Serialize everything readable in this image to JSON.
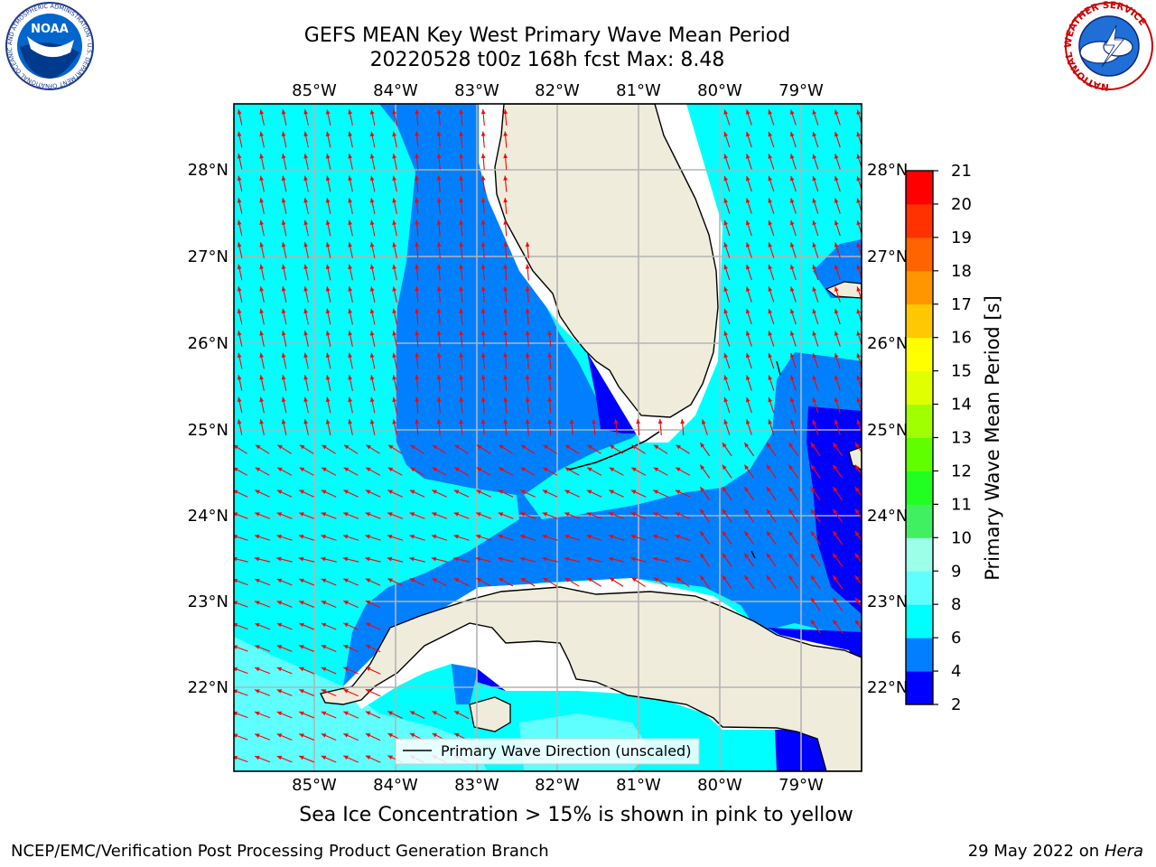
{
  "header": {
    "title_line1": "GEFS MEAN Key West Primary Wave Mean Period",
    "title_line2": "20220528 t00z 168h fcst   Max: 8.48"
  },
  "logos": {
    "noaa_text": "NOAA",
    "noaa_ring": "NATIONAL OCEANIC AND ATMOSPHERIC ADMINISTRATION · U.S. DEPARTMENT OF COMMERCE",
    "nws_ring": "NATIONAL WEATHER SERVICE"
  },
  "map": {
    "lon_ticks": [
      "85°W",
      "84°W",
      "83°W",
      "82°W",
      "81°W",
      "80°W",
      "79°W"
    ],
    "lat_ticks": [
      "28°N",
      "27°N",
      "26°N",
      "25°N",
      "24°N",
      "23°N",
      "22°N"
    ],
    "legend_label": "Primary Wave Direction (unscaled)",
    "colors": {
      "land": "#efecdc",
      "coast": "#000000",
      "grid": "#b4b4b4",
      "arrow": "#ff0000",
      "band_2_4": "#0000ff",
      "band_4_6": "#0080ff",
      "band_6_8": "#00ffff",
      "band_8_9": "#60ffff"
    }
  },
  "colorbar": {
    "label": "Primary Wave Mean Period [s]",
    "ticks": [
      "2",
      "4",
      "6",
      "8",
      "9",
      "10",
      "11",
      "12",
      "13",
      "14",
      "15",
      "16",
      "17",
      "18",
      "19",
      "20",
      "21"
    ],
    "colors": [
      "#0000ff",
      "#0080ff",
      "#00ffff",
      "#60ffff",
      "#9cffe8",
      "#40f060",
      "#20ff20",
      "#60ff00",
      "#a0ff00",
      "#e0ff00",
      "#ffff00",
      "#ffc800",
      "#ff9600",
      "#ff6400",
      "#ff3200",
      "#ff0000"
    ]
  },
  "note": "Sea Ice Concentration > 15% is shown in pink to yellow",
  "footer": {
    "left": "NCEP/EMC/Verification Post Processing Product Generation Branch",
    "right_prefix": "29 May 2022 on",
    "right_host": "Hera"
  }
}
